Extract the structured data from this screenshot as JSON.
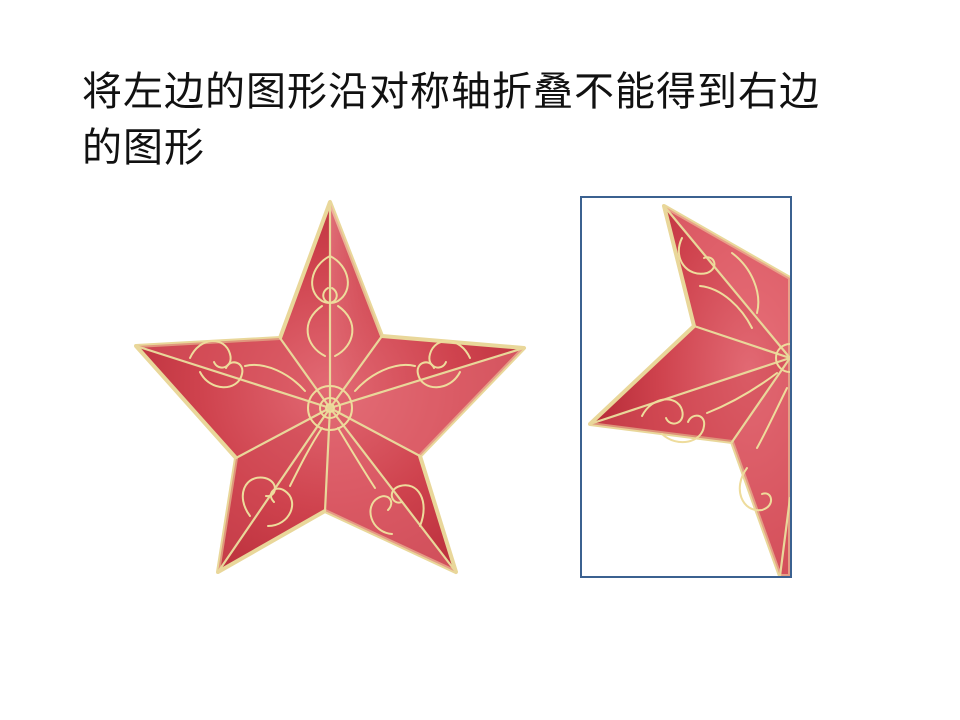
{
  "slide": {
    "question_text": "将左边的图形沿对称轴折叠不能得到右边的图形"
  },
  "figures": {
    "left": {
      "icon": "ornamental-red-star-icon"
    },
    "right": {
      "icon": "half-red-star-icon"
    }
  },
  "colors": {
    "star_red": "#c83a44",
    "star_highlight": "#ec7d86",
    "gold_trim": "#e9d79a",
    "frame_blue": "#3b6190"
  }
}
